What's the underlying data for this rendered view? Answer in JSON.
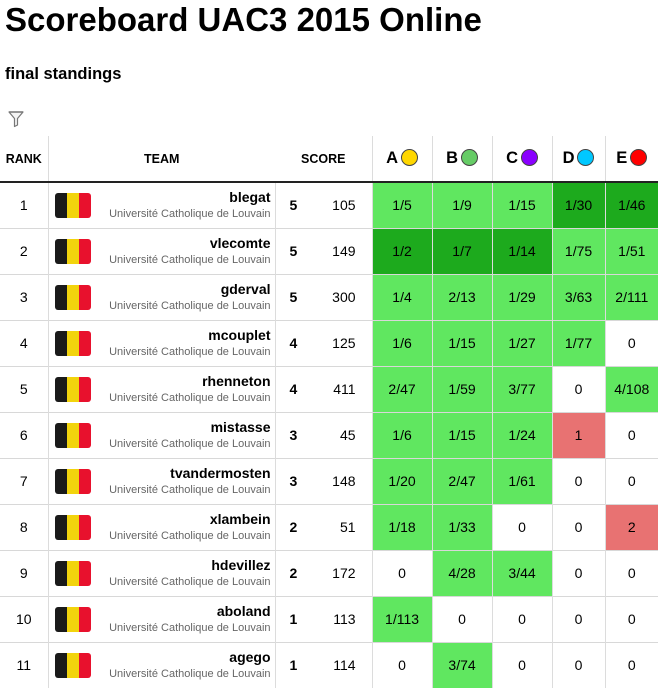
{
  "header": {
    "title": "Scoreboard UAC3 2015 Online",
    "subtitle": "final standings",
    "filter_icon": "filter-icon"
  },
  "columns": {
    "rank": "RANK",
    "team": "TEAM",
    "score": "SCORE"
  },
  "problems": [
    {
      "letter": "A",
      "color": "#ffd700"
    },
    {
      "letter": "B",
      "color": "#66cc66"
    },
    {
      "letter": "C",
      "color": "#8a00ff"
    },
    {
      "letter": "D",
      "color": "#00c8ff"
    },
    {
      "letter": "E",
      "color": "#ff0000"
    }
  ],
  "status_colors": {
    "solved": "#60e760",
    "first_to_solve": "#1daa1d",
    "rejected": "#e87272"
  },
  "flag_colors": [
    "#1a1a1a",
    "#f2d40d",
    "#e8112d"
  ],
  "rows": [
    {
      "rank": "1",
      "team": "blegat",
      "institution": "Université Catholique de Louvain",
      "solved": "5",
      "points": "105",
      "cells": [
        {
          "v": "1/5",
          "s": "ok"
        },
        {
          "v": "1/9",
          "s": "ok"
        },
        {
          "v": "1/15",
          "s": "ok"
        },
        {
          "v": "1/30",
          "s": "first"
        },
        {
          "v": "1/46",
          "s": "first"
        }
      ]
    },
    {
      "rank": "2",
      "team": "vlecomte",
      "institution": "Université Catholique de Louvain",
      "solved": "5",
      "points": "149",
      "cells": [
        {
          "v": "1/2",
          "s": "first"
        },
        {
          "v": "1/7",
          "s": "first"
        },
        {
          "v": "1/14",
          "s": "first"
        },
        {
          "v": "1/75",
          "s": "ok"
        },
        {
          "v": "1/51",
          "s": "ok"
        }
      ]
    },
    {
      "rank": "3",
      "team": "gderval",
      "institution": "Université Catholique de Louvain",
      "solved": "5",
      "points": "300",
      "cells": [
        {
          "v": "1/4",
          "s": "ok"
        },
        {
          "v": "2/13",
          "s": "ok"
        },
        {
          "v": "1/29",
          "s": "ok"
        },
        {
          "v": "3/63",
          "s": "ok"
        },
        {
          "v": "2/111",
          "s": "ok"
        }
      ]
    },
    {
      "rank": "4",
      "team": "mcouplet",
      "institution": "Université Catholique de Louvain",
      "solved": "4",
      "points": "125",
      "cells": [
        {
          "v": "1/6",
          "s": "ok"
        },
        {
          "v": "1/15",
          "s": "ok"
        },
        {
          "v": "1/27",
          "s": "ok"
        },
        {
          "v": "1/77",
          "s": "ok"
        },
        {
          "v": "0",
          "s": "none"
        }
      ]
    },
    {
      "rank": "5",
      "team": "rhenneton",
      "institution": "Université Catholique de Louvain",
      "solved": "4",
      "points": "411",
      "cells": [
        {
          "v": "2/47",
          "s": "ok"
        },
        {
          "v": "1/59",
          "s": "ok"
        },
        {
          "v": "3/77",
          "s": "ok"
        },
        {
          "v": "0",
          "s": "none"
        },
        {
          "v": "4/108",
          "s": "ok"
        }
      ]
    },
    {
      "rank": "6",
      "team": "mistasse",
      "institution": "Université Catholique de Louvain",
      "solved": "3",
      "points": "45",
      "cells": [
        {
          "v": "1/6",
          "s": "ok"
        },
        {
          "v": "1/15",
          "s": "ok"
        },
        {
          "v": "1/24",
          "s": "ok"
        },
        {
          "v": "1",
          "s": "fail"
        },
        {
          "v": "0",
          "s": "none"
        }
      ]
    },
    {
      "rank": "7",
      "team": "tvandermosten",
      "institution": "Université Catholique de Louvain",
      "solved": "3",
      "points": "148",
      "cells": [
        {
          "v": "1/20",
          "s": "ok"
        },
        {
          "v": "2/47",
          "s": "ok"
        },
        {
          "v": "1/61",
          "s": "ok"
        },
        {
          "v": "0",
          "s": "none"
        },
        {
          "v": "0",
          "s": "none"
        }
      ]
    },
    {
      "rank": "8",
      "team": "xlambein",
      "institution": "Université Catholique de Louvain",
      "solved": "2",
      "points": "51",
      "cells": [
        {
          "v": "1/18",
          "s": "ok"
        },
        {
          "v": "1/33",
          "s": "ok"
        },
        {
          "v": "0",
          "s": "none"
        },
        {
          "v": "0",
          "s": "none"
        },
        {
          "v": "2",
          "s": "fail"
        }
      ]
    },
    {
      "rank": "9",
      "team": "hdevillez",
      "institution": "Université Catholique de Louvain",
      "solved": "2",
      "points": "172",
      "cells": [
        {
          "v": "0",
          "s": "none"
        },
        {
          "v": "4/28",
          "s": "ok"
        },
        {
          "v": "3/44",
          "s": "ok"
        },
        {
          "v": "0",
          "s": "none"
        },
        {
          "v": "0",
          "s": "none"
        }
      ]
    },
    {
      "rank": "10",
      "team": "aboland",
      "institution": "Université Catholique de Louvain",
      "solved": "1",
      "points": "113",
      "cells": [
        {
          "v": "1/113",
          "s": "ok"
        },
        {
          "v": "0",
          "s": "none"
        },
        {
          "v": "0",
          "s": "none"
        },
        {
          "v": "0",
          "s": "none"
        },
        {
          "v": "0",
          "s": "none"
        }
      ]
    },
    {
      "rank": "11",
      "team": "agego",
      "institution": "Université Catholique de Louvain",
      "solved": "1",
      "points": "114",
      "cells": [
        {
          "v": "0",
          "s": "none"
        },
        {
          "v": "3/74",
          "s": "ok"
        },
        {
          "v": "0",
          "s": "none"
        },
        {
          "v": "0",
          "s": "none"
        },
        {
          "v": "0",
          "s": "none"
        }
      ]
    }
  ]
}
